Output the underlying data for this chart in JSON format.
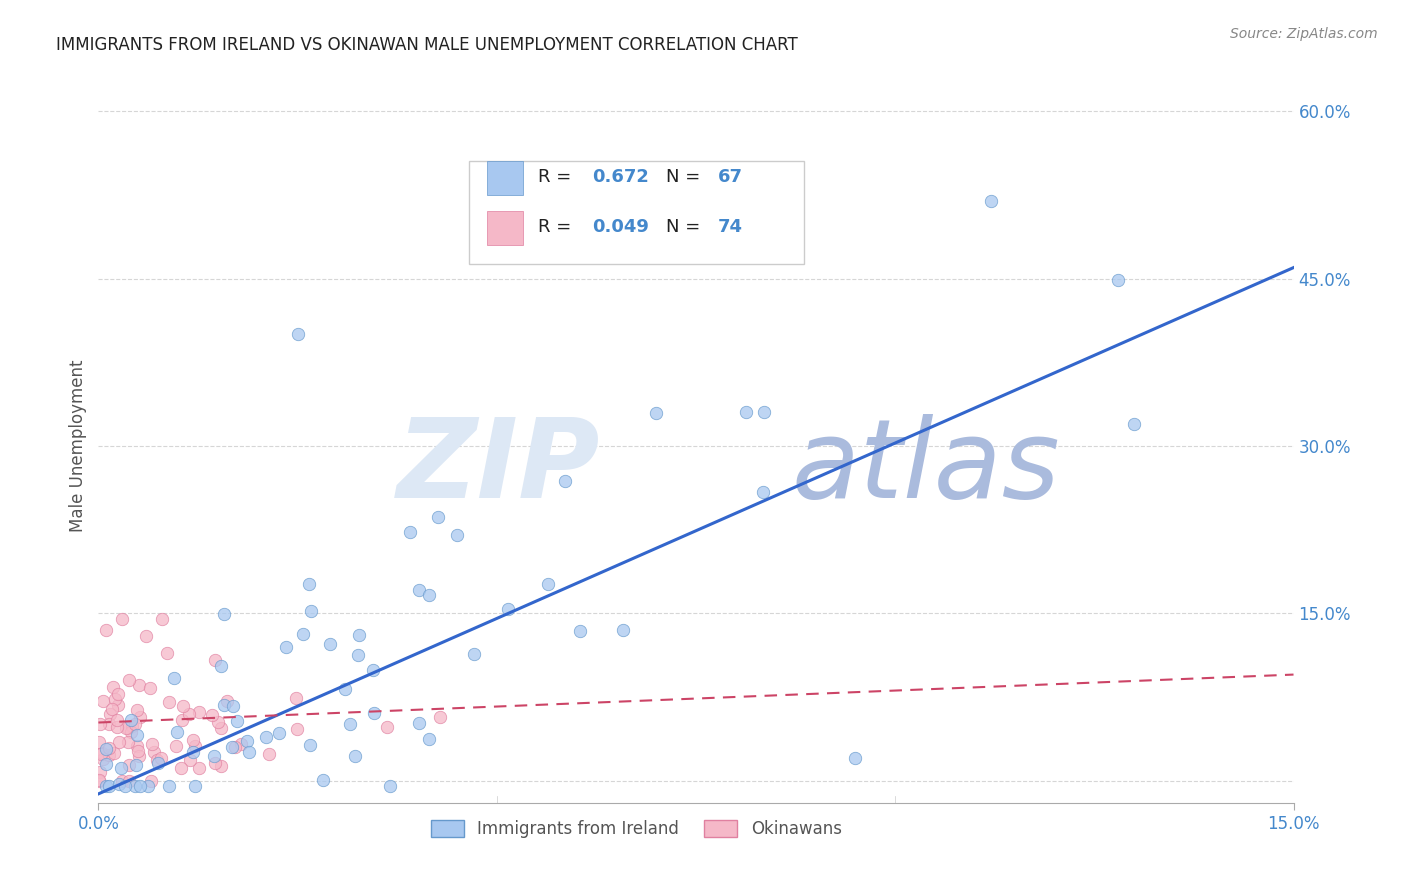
{
  "title": "IMMIGRANTS FROM IRELAND VS OKINAWAN MALE UNEMPLOYMENT CORRELATION CHART",
  "source": "Source: ZipAtlas.com",
  "legend_label1": "Immigrants from Ireland",
  "legend_label2": "Okinawans",
  "ylabel": "Male Unemployment",
  "xlim": [
    0.0,
    0.15
  ],
  "ylim": [
    -0.02,
    0.62
  ],
  "ytick_positions": [
    0.0,
    0.15,
    0.3,
    0.45,
    0.6
  ],
  "ytick_labels": [
    "",
    "15.0%",
    "30.0%",
    "45.0%",
    "60.0%"
  ],
  "xtick_positions": [
    0.0,
    0.15
  ],
  "xtick_labels": [
    "0.0%",
    "15.0%"
  ],
  "series1_color": "#a8c8f0",
  "series1_edge": "#6699cc",
  "series2_color": "#f5b8c8",
  "series2_edge": "#e080a0",
  "trend1_color": "#3366cc",
  "trend2_color": "#cc4466",
  "trend1_x0": 0.0,
  "trend1_y0": -0.012,
  "trend1_x1": 0.15,
  "trend1_y1": 0.46,
  "trend2_x0": 0.0,
  "trend2_y0": 0.052,
  "trend2_x1": 0.15,
  "trend2_y1": 0.095,
  "axis_tick_color": "#4488cc",
  "grid_color": "#cccccc",
  "background_color": "#ffffff",
  "title_fontsize": 12,
  "tick_fontsize": 12,
  "watermark_zip_color": "#dde8f5",
  "watermark_atlas_color": "#aabbdd",
  "legend_r1_label": "R = ",
  "legend_r1_val": "0.672",
  "legend_n1_label": "N = ",
  "legend_n1_val": "67",
  "legend_r2_label": "R = ",
  "legend_r2_val": "0.049",
  "legend_n2_label": "N = ",
  "legend_n2_val": "74"
}
